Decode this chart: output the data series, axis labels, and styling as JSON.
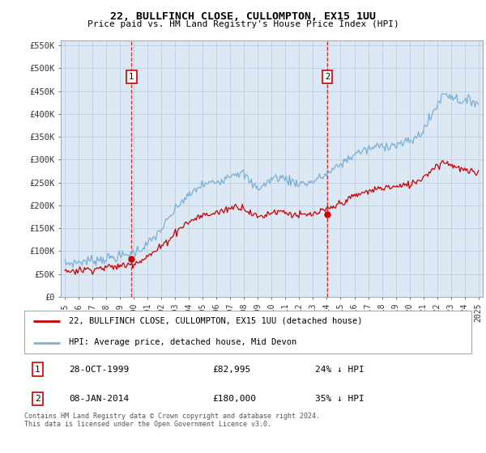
{
  "title": "22, BULLFINCH CLOSE, CULLOMPTON, EX15 1UU",
  "subtitle": "Price paid vs. HM Land Registry's House Price Index (HPI)",
  "property_label": "22, BULLFINCH CLOSE, CULLOMPTON, EX15 1UU (detached house)",
  "hpi_label": "HPI: Average price, detached house, Mid Devon",
  "transaction1_date": "28-OCT-1999",
  "transaction1_price": "£82,995",
  "transaction1_note": "24% ↓ HPI",
  "transaction2_date": "08-JAN-2014",
  "transaction2_price": "£180,000",
  "transaction2_note": "35% ↓ HPI",
  "footer": "Contains HM Land Registry data © Crown copyright and database right 2024.\nThis data is licensed under the Open Government Licence v3.0.",
  "property_color": "#cc0000",
  "hpi_color": "#7bafd4",
  "transaction1_x": 1999.83,
  "transaction2_x": 2014.03,
  "transaction1_y": 82995,
  "transaction2_y": 180000,
  "ylim": [
    0,
    560000
  ],
  "yticks": [
    0,
    50000,
    100000,
    150000,
    200000,
    250000,
    300000,
    350000,
    400000,
    450000,
    500000,
    550000
  ],
  "xlim_start": 1994.7,
  "xlim_end": 2025.3,
  "plot_bg_color": "#dce9f5",
  "background_color": "#ffffff",
  "grid_color": "#b8c8d8"
}
